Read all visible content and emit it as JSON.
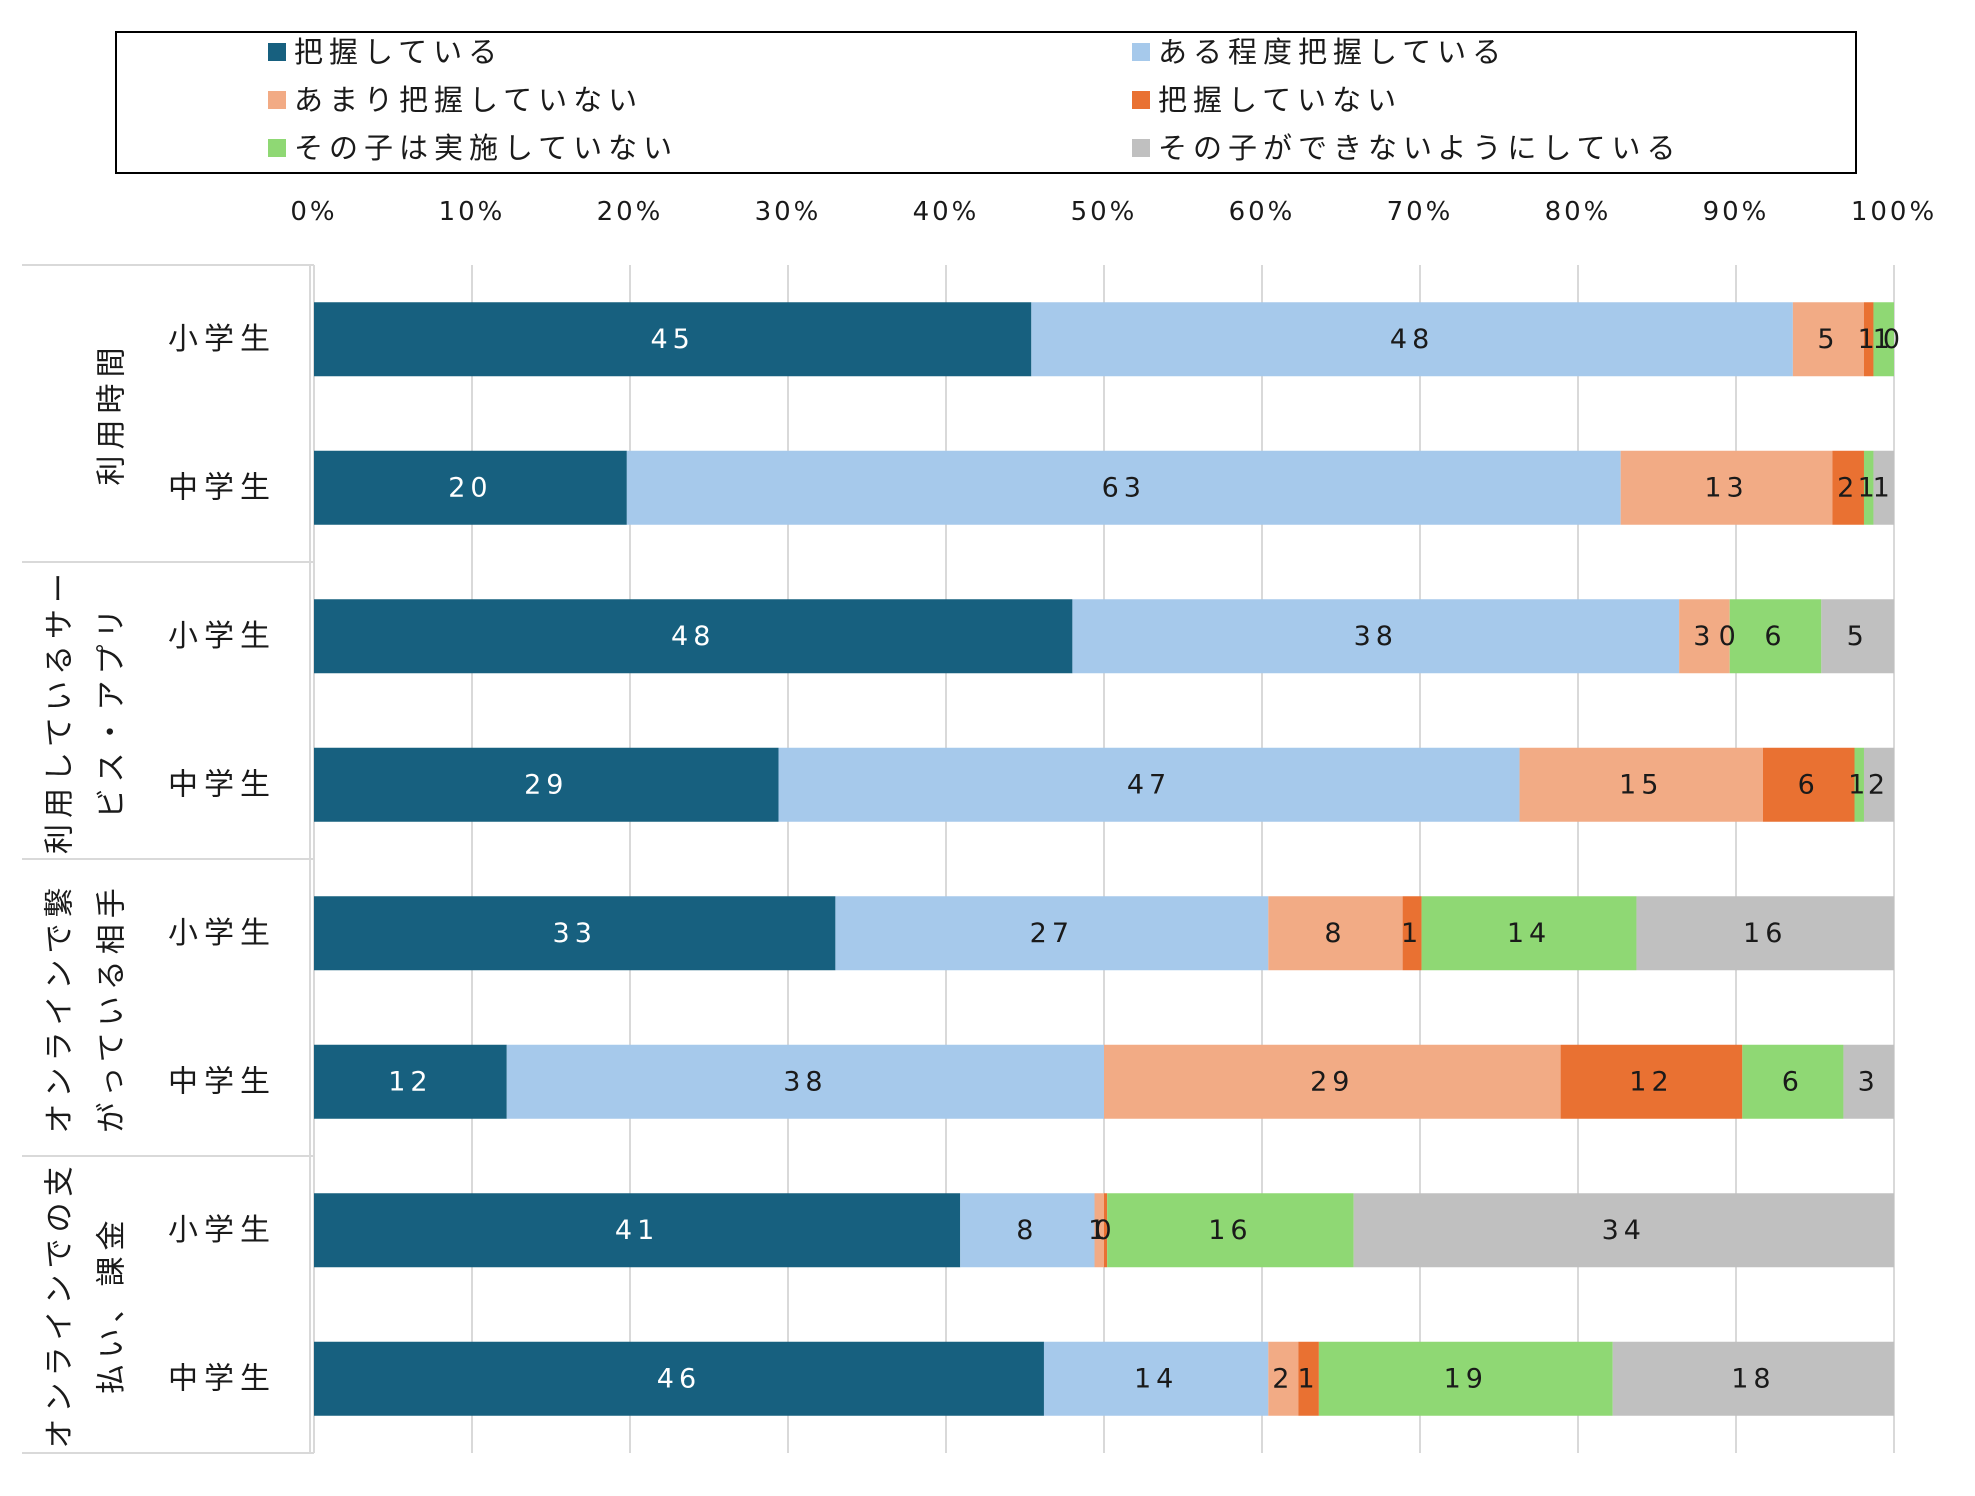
{
  "chart_data": {
    "type": "bar",
    "orientation": "horizontal",
    "stacked": "percent",
    "legend_position": "top",
    "grid": true,
    "xlim": [
      0,
      100
    ],
    "x_tick_labels": [
      "0%",
      "10%",
      "20%",
      "30%",
      "40%",
      "50%",
      "60%",
      "70%",
      "80%",
      "90%",
      "100%"
    ],
    "groups": [
      {
        "label": "利用時間",
        "label_lines": [
          "利用時間"
        ]
      },
      {
        "label": "利用しているサービス・アプリ",
        "label_lines": [
          "利用しているサー",
          "ビス・アプリ"
        ]
      },
      {
        "label": "オンラインで繋がっている相手",
        "label_lines": [
          "オンラインで繋",
          "がっている相手"
        ]
      },
      {
        "label": "オンラインでの支払い、課金",
        "label_lines": [
          "オンラインでの支",
          "払い、課金"
        ]
      }
    ],
    "categories": [
      "小学生",
      "中学生",
      "小学生",
      "中学生",
      "小学生",
      "中学生",
      "小学生",
      "中学生"
    ],
    "series": [
      {
        "name": "把握している",
        "color": "#17607f",
        "values": [
          45.4,
          19.8,
          48.0,
          29.4,
          33.0,
          12.2,
          40.9,
          46.2
        ]
      },
      {
        "name": "ある程度把握している",
        "color": "#a6c9eb",
        "values": [
          48.2,
          62.9,
          38.4,
          46.9,
          27.4,
          37.8,
          8.5,
          14.2
        ]
      },
      {
        "name": "あまり把握していない",
        "color": "#f2ab85",
        "values": [
          4.5,
          13.4,
          3.2,
          15.4,
          8.5,
          28.9,
          0.6,
          1.9
        ]
      },
      {
        "name": "把握していない",
        "color": "#e97132",
        "values": [
          0.6,
          2.0,
          0.0,
          5.8,
          1.2,
          11.5,
          0.2,
          1.3
        ]
      },
      {
        "name": "その子は実施していない",
        "color": "#8fd874",
        "values": [
          1.3,
          0.6,
          5.8,
          0.6,
          13.6,
          6.4,
          15.6,
          18.6
        ]
      },
      {
        "name": "その子ができないようにしている",
        "color": "#c0c0c0",
        "values": [
          0.0,
          1.3,
          4.6,
          1.9,
          16.3,
          3.2,
          34.2,
          17.8
        ]
      }
    ],
    "data_labels": [
      [
        "45",
        "48",
        "5",
        "1",
        "1",
        "0"
      ],
      [
        "20",
        "63",
        "13",
        "2",
        "1",
        "1"
      ],
      [
        "48",
        "38",
        "3",
        "0",
        "6",
        "5"
      ],
      [
        "29",
        "47",
        "15",
        "6",
        "1",
        "2"
      ],
      [
        "33",
        "27",
        "8",
        "1",
        "14",
        "16"
      ],
      [
        "12",
        "38",
        "29",
        "12",
        "6",
        "3"
      ],
      [
        "41",
        "8",
        "1",
        "0",
        "16",
        "34"
      ],
      [
        "46",
        "14",
        "2",
        "1",
        "19",
        "18"
      ]
    ]
  }
}
